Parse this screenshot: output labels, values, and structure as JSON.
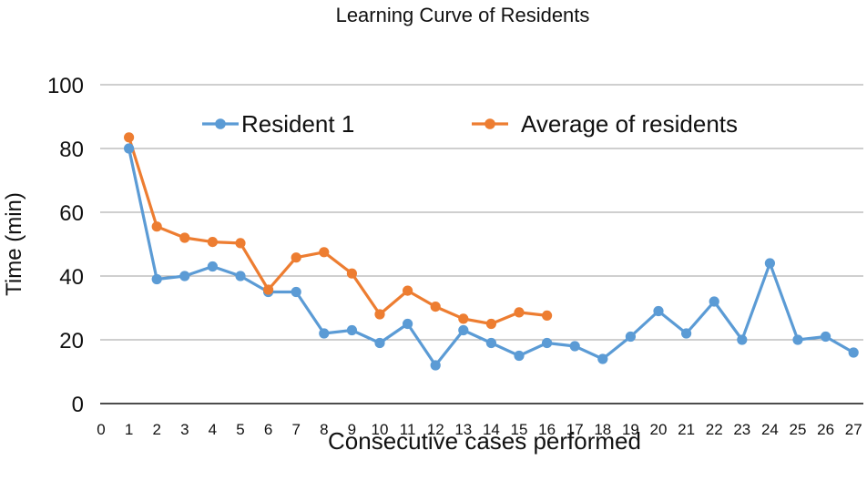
{
  "chart_data": {
    "type": "line",
    "title": "Learning Curve of Residents",
    "xlabel": "Consecutive cases performed",
    "ylabel": "Time (min)",
    "ylim": [
      0,
      100
    ],
    "y_ticks": [
      "0",
      "20",
      "40",
      "60",
      "80",
      "100"
    ],
    "x_ticks": [
      "0",
      "1",
      "2",
      "3",
      "4",
      "5",
      "6",
      "7",
      "8",
      "9",
      "10",
      "11",
      "12",
      "13",
      "14",
      "15",
      "16",
      "17",
      "18",
      "19",
      "20",
      "21",
      "22",
      "23",
      "24",
      "25",
      "26",
      "27"
    ],
    "grid": true,
    "legend_position": "top",
    "series": [
      {
        "name": "Resident 1",
        "color": "#5b9bd5",
        "x": [
          1,
          2,
          3,
          4,
          5,
          6,
          7,
          8,
          9,
          10,
          11,
          12,
          13,
          14,
          15,
          16,
          17,
          18,
          19,
          20,
          21,
          22,
          23,
          24,
          25,
          26,
          27
        ],
        "values": [
          80,
          39,
          40,
          43,
          40,
          35,
          35,
          22,
          23,
          19,
          25,
          12,
          23,
          19,
          15,
          19,
          18,
          14,
          21,
          29,
          22,
          32,
          20,
          44,
          20,
          21,
          16
        ]
      },
      {
        "name": "Average of residents",
        "color": "#ed7d31",
        "x": [
          1,
          2,
          3,
          4,
          5,
          6,
          7,
          8,
          9,
          10,
          11,
          12,
          13,
          14,
          15,
          16
        ],
        "values": [
          83.5,
          55.5,
          52,
          50.7,
          50.3,
          35.7,
          45.8,
          47.5,
          40.8,
          28,
          35.4,
          30.4,
          26.6,
          25,
          28.6,
          27.6
        ]
      }
    ]
  }
}
